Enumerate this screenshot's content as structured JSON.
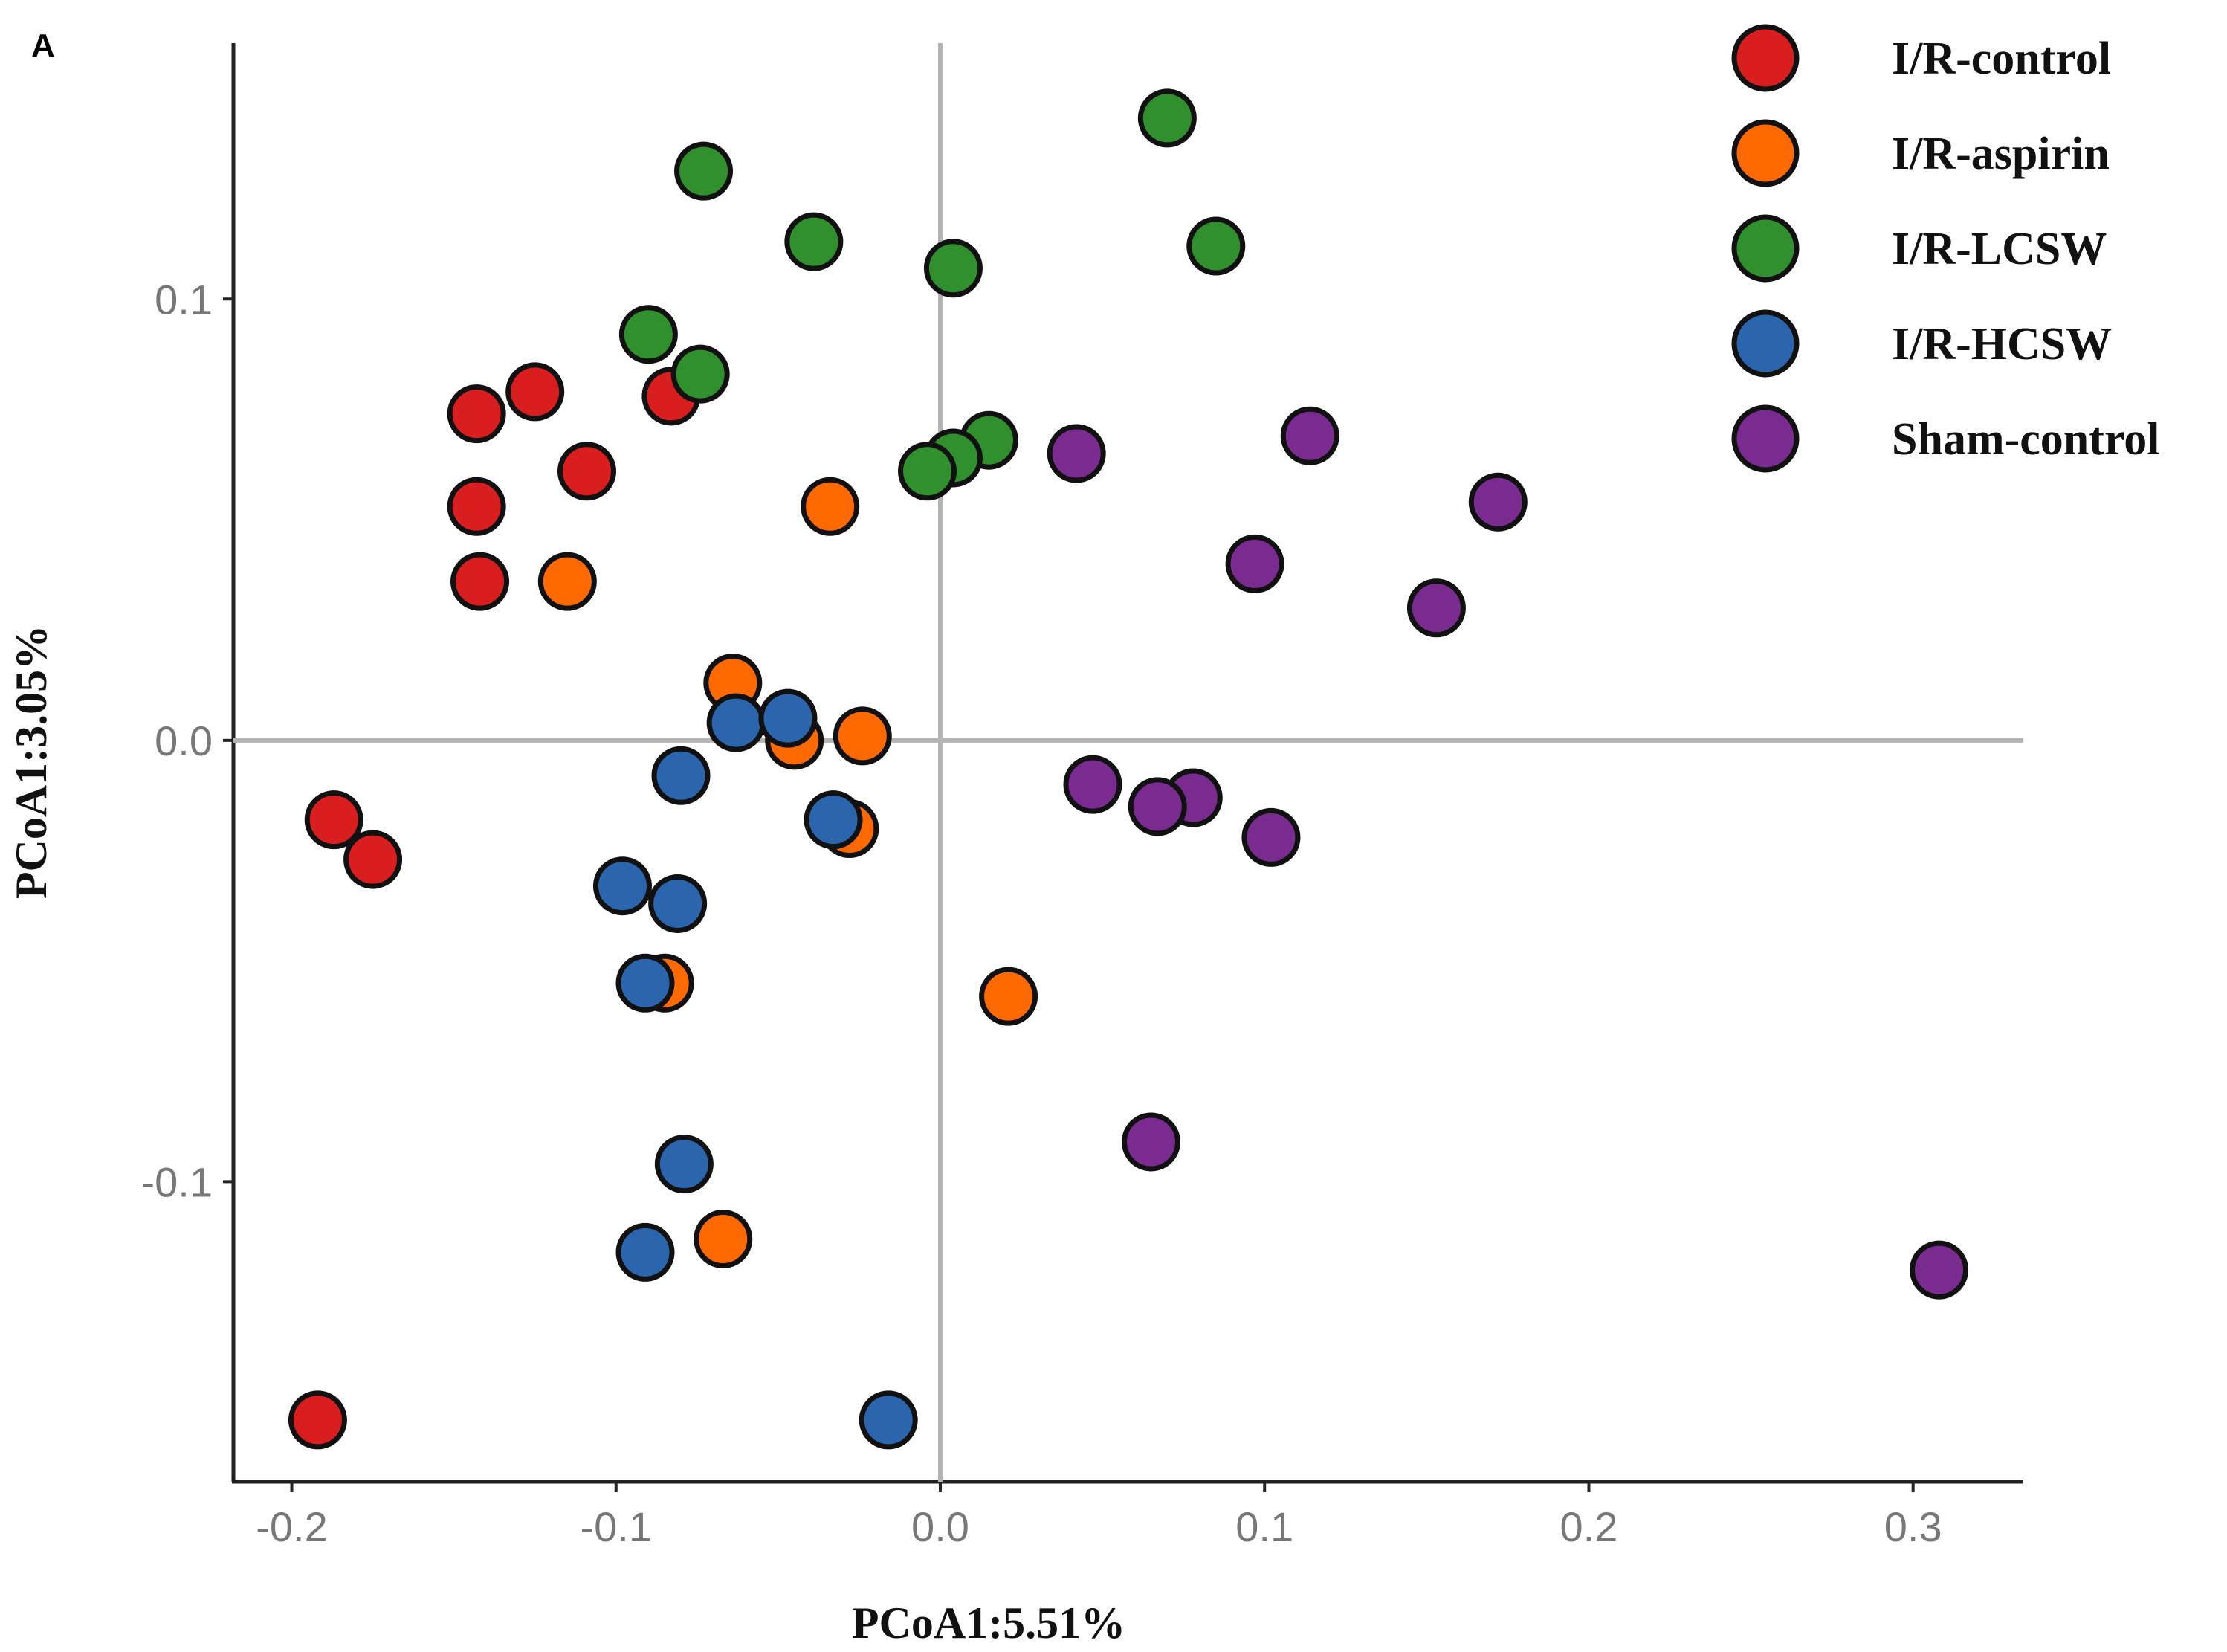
{
  "chart_data": {
    "type": "scatter",
    "panel_label": "A",
    "xlabel": "PCoA1:5.51%",
    "ylabel": "PCoA1:3.05%",
    "xlim": [
      -0.218,
      0.334
    ],
    "ylim": [
      -0.168,
      0.158
    ],
    "x_ticks": [
      -0.2,
      -0.1,
      0.0,
      0.1,
      0.2,
      0.3
    ],
    "x_tick_labels": [
      "-0.2",
      "-0.1",
      "0.0",
      "0.1",
      "0.2",
      "0.3"
    ],
    "y_ticks": [
      -0.1,
      0.0,
      0.1
    ],
    "y_tick_labels": [
      "-0.1",
      "0.0",
      "0.1"
    ],
    "reference_lines": {
      "x": 0.0,
      "y": 0.0
    },
    "legend_position": "top-right",
    "series": [
      {
        "name": "I/R-control",
        "color": "#d81e1e",
        "points": [
          {
            "x": -0.143,
            "y": 0.074
          },
          {
            "x": -0.125,
            "y": 0.079
          },
          {
            "x": -0.083,
            "y": 0.078
          },
          {
            "x": -0.109,
            "y": 0.061
          },
          {
            "x": -0.143,
            "y": 0.053
          },
          {
            "x": -0.142,
            "y": 0.036
          },
          {
            "x": -0.187,
            "y": -0.018
          },
          {
            "x": -0.175,
            "y": -0.027
          },
          {
            "x": -0.192,
            "y": -0.154
          }
        ]
      },
      {
        "name": "I/R-aspirin",
        "color": "#ff6a00",
        "points": [
          {
            "x": -0.034,
            "y": 0.053
          },
          {
            "x": -0.115,
            "y": 0.036
          },
          {
            "x": -0.064,
            "y": 0.013
          },
          {
            "x": -0.045,
            "y": 0.0
          },
          {
            "x": -0.024,
            "y": 0.001
          },
          {
            "x": -0.028,
            "y": -0.02
          },
          {
            "x": -0.085,
            "y": -0.055
          },
          {
            "x": 0.021,
            "y": -0.058
          },
          {
            "x": -0.067,
            "y": -0.113
          }
        ]
      },
      {
        "name": "I/R-LCSW",
        "color": "#30902e",
        "points": [
          {
            "x": 0.07,
            "y": 0.141
          },
          {
            "x": -0.073,
            "y": 0.129
          },
          {
            "x": -0.039,
            "y": 0.113
          },
          {
            "x": 0.085,
            "y": 0.112
          },
          {
            "x": 0.004,
            "y": 0.107
          },
          {
            "x": -0.09,
            "y": 0.092
          },
          {
            "x": -0.074,
            "y": 0.083
          },
          {
            "x": 0.015,
            "y": 0.068
          },
          {
            "x": 0.004,
            "y": 0.064
          },
          {
            "x": -0.004,
            "y": 0.061
          }
        ]
      },
      {
        "name": "I/R-HCSW",
        "color": "#2a65ad",
        "points": [
          {
            "x": -0.063,
            "y": 0.004
          },
          {
            "x": -0.047,
            "y": 0.005
          },
          {
            "x": -0.08,
            "y": -0.008
          },
          {
            "x": -0.033,
            "y": -0.018
          },
          {
            "x": -0.098,
            "y": -0.033
          },
          {
            "x": -0.081,
            "y": -0.037
          },
          {
            "x": -0.091,
            "y": -0.055
          },
          {
            "x": -0.079,
            "y": -0.096
          },
          {
            "x": -0.091,
            "y": -0.116
          },
          {
            "x": -0.016,
            "y": -0.154
          }
        ]
      },
      {
        "name": "Sham-control",
        "color": "#7a2b8f",
        "points": [
          {
            "x": 0.114,
            "y": 0.069
          },
          {
            "x": 0.042,
            "y": 0.065
          },
          {
            "x": 0.172,
            "y": 0.054
          },
          {
            "x": 0.097,
            "y": 0.04
          },
          {
            "x": 0.153,
            "y": 0.03
          },
          {
            "x": 0.047,
            "y": -0.01
          },
          {
            "x": 0.078,
            "y": -0.013
          },
          {
            "x": 0.067,
            "y": -0.015
          },
          {
            "x": 0.102,
            "y": -0.022
          },
          {
            "x": 0.065,
            "y": -0.091
          },
          {
            "x": 0.308,
            "y": -0.12
          }
        ]
      }
    ]
  }
}
